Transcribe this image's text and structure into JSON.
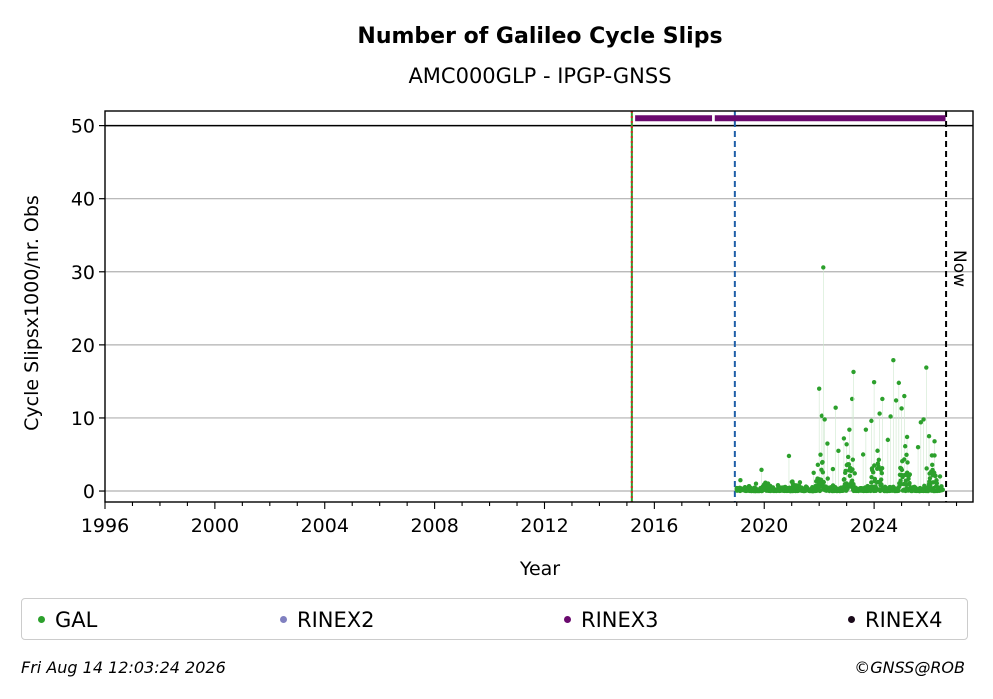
{
  "chart_data": {
    "type": "scatter",
    "title": "Number of Galileo Cycle Slips",
    "subtitle": "AMC000GLP - IPGP-GNSS",
    "xlabel": "Year",
    "ylabel": "Cycle Slipsx1000/nr. Obs",
    "xlim": [
      1996,
      2027.6
    ],
    "ylim": [
      -1.5,
      52
    ],
    "xticks": [
      1996,
      2000,
      2004,
      2008,
      2012,
      2016,
      2020,
      2024
    ],
    "yticks": [
      0,
      10,
      20,
      30,
      40,
      50
    ],
    "grid": "horizontal",
    "vlines": [
      {
        "x": 2015.18,
        "color": "#2ca02c",
        "style": "solid"
      },
      {
        "x": 2015.18,
        "color": "#d62728",
        "style": "dotted"
      },
      {
        "x": 2018.93,
        "color": "#1f5fa8",
        "style": "dashed"
      },
      {
        "x": 2026.62,
        "color": "#000000",
        "style": "dashed",
        "label": "Now"
      }
    ],
    "hline": 50,
    "rinex_bar": {
      "series": "RINEX3",
      "color": "#6a0a6e",
      "y": 51,
      "segments": [
        [
          2015.3,
          2018.1
        ],
        [
          2018.2,
          2026.6
        ]
      ]
    },
    "series": [
      {
        "name": "GAL",
        "color": "#2ca02c",
        "note_points": [
          [
            2019.0,
            0.2
          ],
          [
            2019.3,
            0.5
          ],
          [
            2019.7,
            1.0
          ],
          [
            2019.9,
            2.9
          ],
          [
            2020.2,
            0.6
          ],
          [
            2020.5,
            0.8
          ],
          [
            2020.9,
            4.8
          ],
          [
            2021.3,
            1.2
          ],
          [
            2021.8,
            2.5
          ],
          [
            2022.0,
            14.0
          ],
          [
            2022.1,
            10.3
          ],
          [
            2022.15,
            30.6
          ],
          [
            2022.2,
            9.8
          ],
          [
            2022.3,
            6.5
          ],
          [
            2022.5,
            3.0
          ],
          [
            2022.6,
            11.4
          ],
          [
            2022.7,
            5.5
          ],
          [
            2022.9,
            7.2
          ],
          [
            2023.0,
            6.4
          ],
          [
            2023.1,
            8.4
          ],
          [
            2023.2,
            12.6
          ],
          [
            2023.25,
            16.3
          ],
          [
            2023.6,
            5.0
          ],
          [
            2023.7,
            8.4
          ],
          [
            2023.9,
            9.6
          ],
          [
            2024.0,
            14.9
          ],
          [
            2024.2,
            10.6
          ],
          [
            2024.3,
            12.6
          ],
          [
            2024.5,
            7.0
          ],
          [
            2024.6,
            10.2
          ],
          [
            2024.7,
            17.9
          ],
          [
            2024.8,
            12.4
          ],
          [
            2024.9,
            14.8
          ],
          [
            2025.0,
            11.3
          ],
          [
            2025.1,
            13.0
          ],
          [
            2025.2,
            7.4
          ],
          [
            2025.6,
            6.0
          ],
          [
            2025.7,
            9.4
          ],
          [
            2025.8,
            9.8
          ],
          [
            2025.9,
            16.9
          ],
          [
            2026.0,
            7.5
          ],
          [
            2026.2,
            6.8
          ],
          [
            2026.4,
            2.0
          ]
        ]
      },
      {
        "name": "RINEX2",
        "color": "#8080c0"
      },
      {
        "name": "RINEX3",
        "color": "#6a0a6e"
      },
      {
        "name": "RINEX4",
        "color": "#1a0a1a"
      }
    ]
  },
  "footer": {
    "timestamp": "Fri Aug 14 12:03:24 2026",
    "credit": "©GNSS@ROB"
  }
}
